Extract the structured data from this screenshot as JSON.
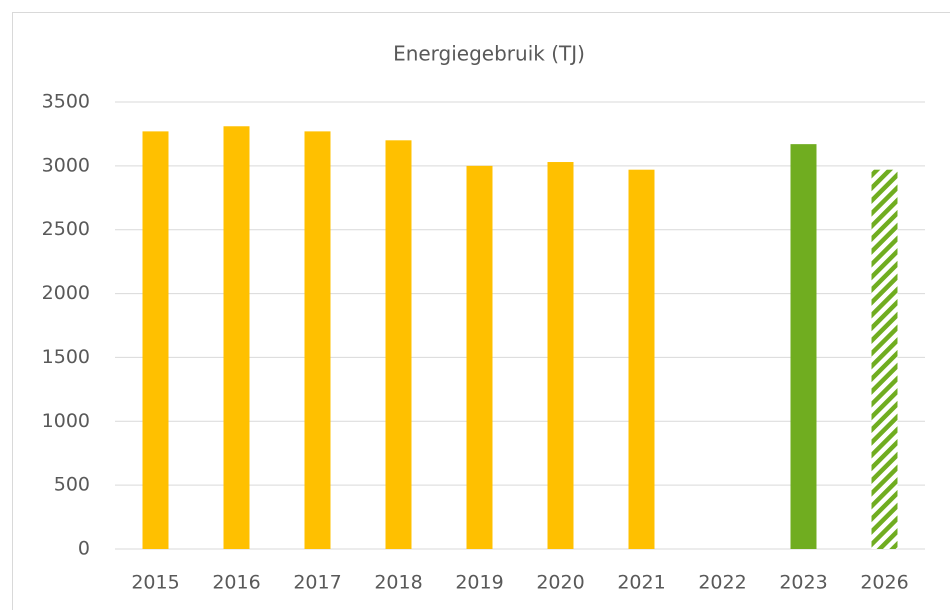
{
  "chart_data": {
    "type": "bar",
    "title": "Energiegebruik (TJ)",
    "categories": [
      "2015",
      "2016",
      "2017",
      "2018",
      "2019",
      "2020",
      "2021",
      "2022",
      "2023",
      "2026"
    ],
    "values": [
      3270,
      3310,
      3270,
      3200,
      3000,
      3030,
      2970,
      null,
      3170,
      2970
    ],
    "colors": [
      "#ffc000",
      "#ffc000",
      "#ffc000",
      "#ffc000",
      "#ffc000",
      "#ffc000",
      "#ffc000",
      "#ffc000",
      "#70ad20",
      "#70ad20"
    ],
    "hatched": [
      false,
      false,
      false,
      false,
      false,
      false,
      false,
      false,
      false,
      true
    ],
    "ylim": [
      0,
      3500
    ],
    "yticks": [
      0,
      500,
      1000,
      1500,
      2000,
      2500,
      3000,
      3500
    ],
    "grid": true
  }
}
